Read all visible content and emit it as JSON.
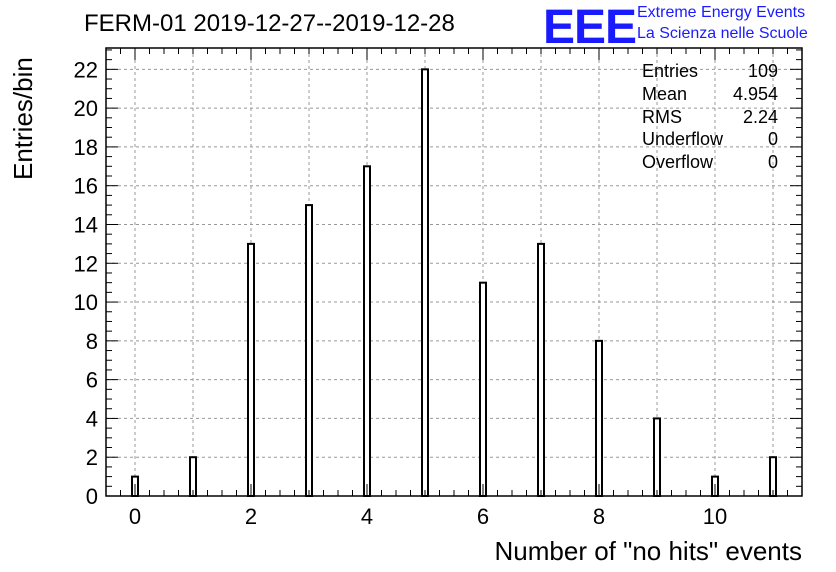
{
  "header": {
    "title": "FERM-01 2019-12-27--2019-12-28",
    "logo_mark": "EEE",
    "logo_line1": "Extreme Energy Events",
    "logo_line2": "La Scienza nelle Scuole"
  },
  "stats": {
    "entries_label": "Entries",
    "entries_value": "109",
    "mean_label": "Mean",
    "mean_value": "4.954",
    "rms_label": "RMS",
    "rms_value": "2.24",
    "underflow_label": "Underflow",
    "underflow_value": "0",
    "overflow_label": "Overflow",
    "overflow_value": "0"
  },
  "chart_data": {
    "type": "bar",
    "title": "FERM-01 2019-12-27--2019-12-28",
    "xlabel": "Number of \"no hits\" events",
    "ylabel": "Entries/bin",
    "x": [
      0,
      1,
      2,
      3,
      4,
      5,
      6,
      7,
      8,
      9,
      10,
      11
    ],
    "values": [
      1,
      2,
      13,
      15,
      17,
      22,
      11,
      13,
      8,
      4,
      1,
      2
    ],
    "xlim": [
      -0.5,
      11.5
    ],
    "ylim": [
      0,
      23.1
    ],
    "xticks": [
      0,
      2,
      4,
      6,
      8,
      10
    ],
    "yticks": [
      0,
      2,
      4,
      6,
      8,
      10,
      12,
      14,
      16,
      18,
      20,
      22
    ],
    "grid": true,
    "legend": "stats box top-right"
  }
}
